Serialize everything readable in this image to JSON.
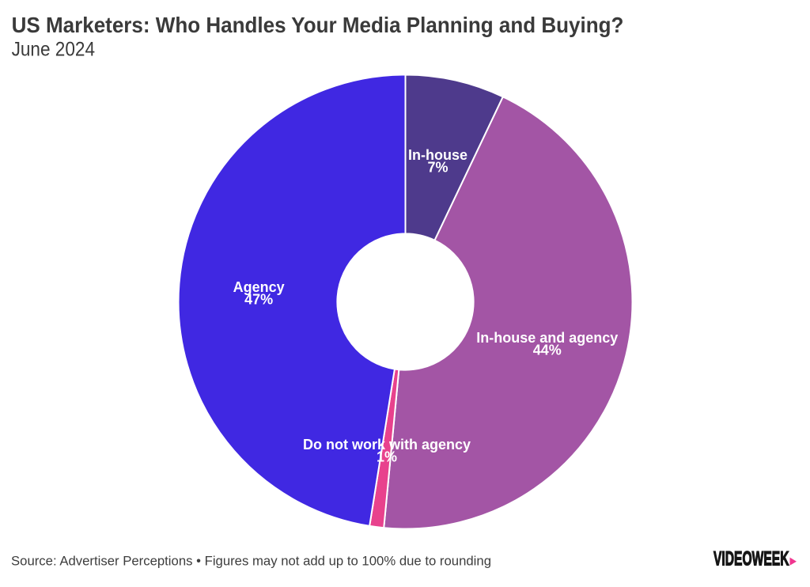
{
  "header": {
    "title": "US Marketers: Who Handles Your Media Planning and Buying?",
    "subtitle": "June 2024"
  },
  "chart_data": {
    "type": "pie",
    "title": "US Marketers: Who Handles Your Media Planning and Buying?",
    "subtitle": "June 2024",
    "donut": true,
    "inner_radius_ratio": 0.3,
    "start_angle_deg": 0,
    "direction": "clockwise",
    "slices": [
      {
        "label": "In-house",
        "value": 7,
        "value_label": "7%",
        "color": "#4e3a8c"
      },
      {
        "label": "In-house and agency",
        "value": 44,
        "value_label": "44%",
        "color": "#a355a5"
      },
      {
        "label": "Do not work with agency",
        "value": 1,
        "value_label": "1%",
        "color": "#e8428d"
      },
      {
        "label": "Agency",
        "value": 47,
        "value_label": "47%",
        "color": "#4028e2"
      }
    ],
    "separator_color": "#ffffff",
    "label_color": "#ffffff",
    "legend": "none"
  },
  "footer": {
    "source": "Source: Advertiser Perceptions • Figures may not add up to 100% due to rounding",
    "logo": {
      "text": "VIDEOWEEK",
      "text_color": "#161616",
      "accent_color": "#f0368f"
    }
  }
}
